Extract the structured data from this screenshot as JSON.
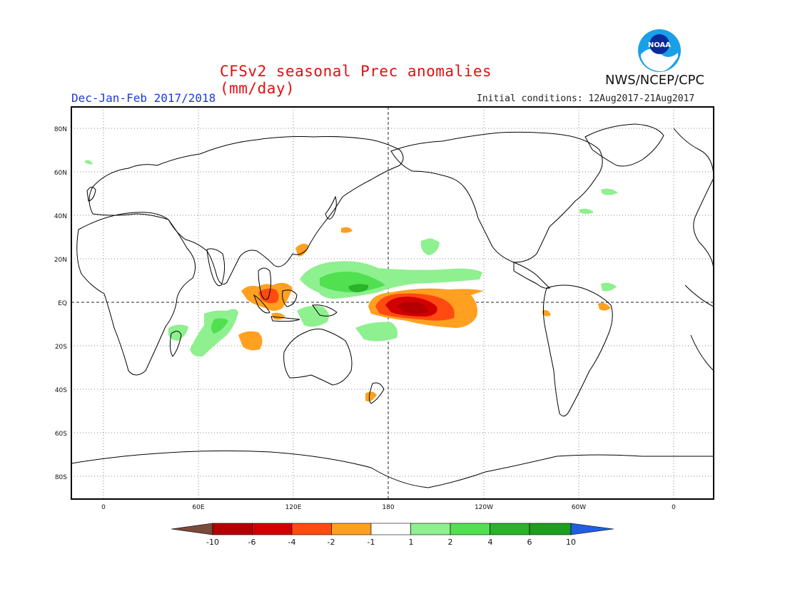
{
  "header": {
    "title": "CFSv2 seasonal Prec anomalies (mm/day)",
    "season": "Dec-Jan-Feb 2017/2018",
    "initial_conditions": "Initial conditions: 12Aug2017-21Aug2017",
    "agency": "NWS/NCEP/CPC",
    "logo_text": "NOAA"
  },
  "map": {
    "lat_labels": [
      "80N",
      "60N",
      "40N",
      "20N",
      "EQ",
      "20S",
      "40S",
      "60S",
      "80S"
    ],
    "lon_labels": [
      "0",
      "60E",
      "120E",
      "180",
      "120W",
      "60W",
      "0"
    ]
  },
  "legend": {
    "labels": [
      "-10",
      "-6",
      "-4",
      "-2",
      "-1",
      "1",
      "2",
      "4",
      "6",
      "10"
    ],
    "colors": [
      "#7a4a3a",
      "#b40000",
      "#d20000",
      "#ff4a10",
      "#ffa020",
      "#ffffff",
      "#8ef08e",
      "#50e050",
      "#2ab22a",
      "#1e9e1e",
      "#2060e0"
    ]
  }
}
